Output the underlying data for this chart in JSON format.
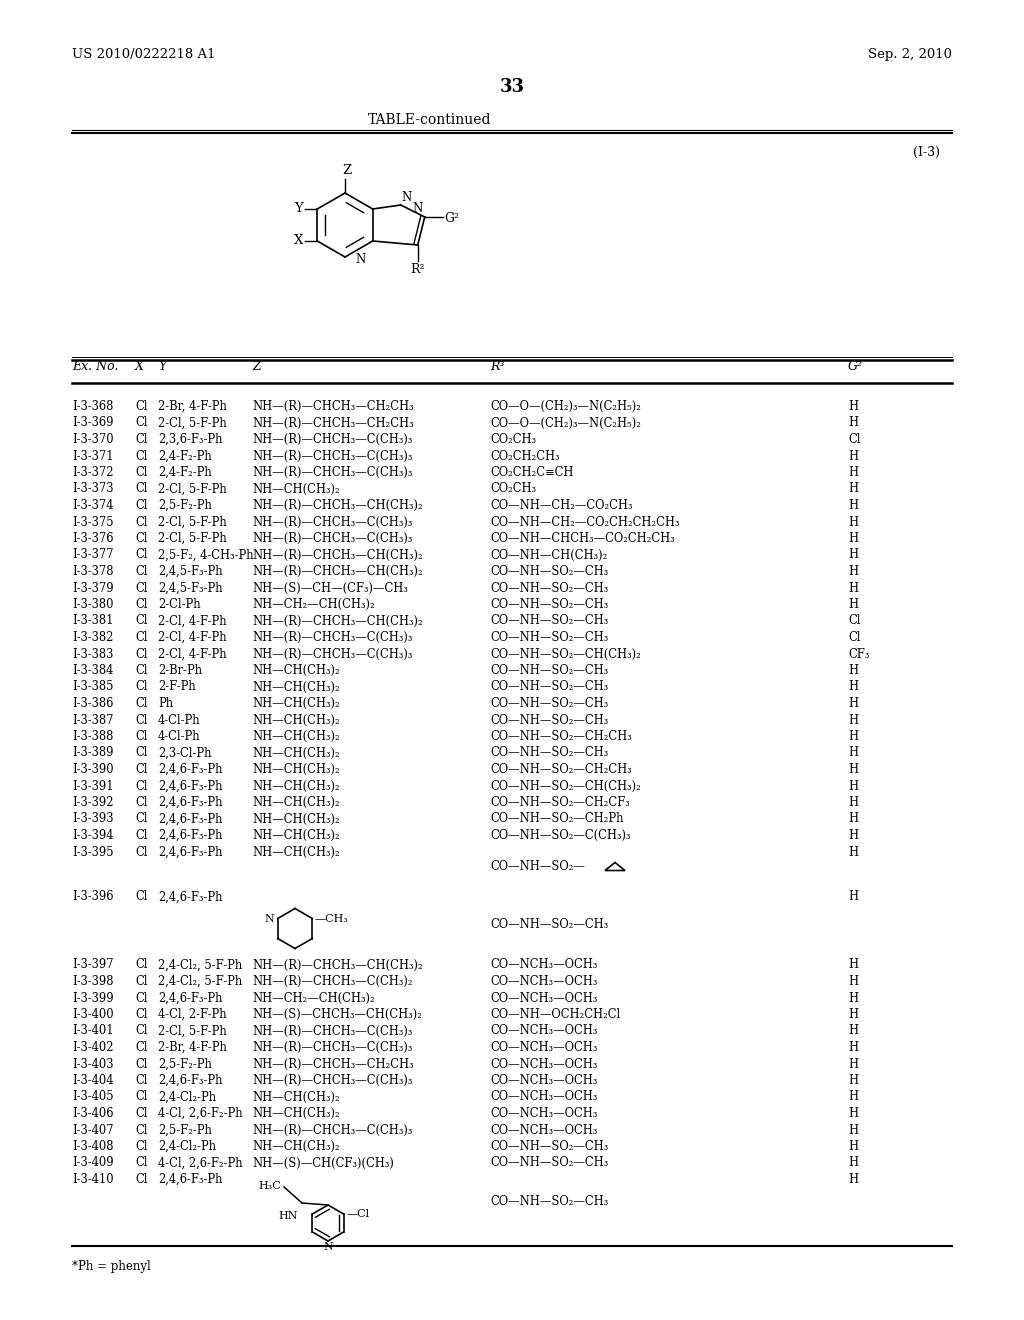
{
  "header_left": "US 2010/0222218 A1",
  "header_right": "Sep. 2, 2010",
  "page_number": "33",
  "table_title": "TABLE-continued",
  "compound_label": "(I-3)",
  "background_color": "#ffffff",
  "footnote": "*Ph = phenyl",
  "rows": [
    [
      "I-3-368",
      "Cl",
      "2-Br, 4-F-Ph",
      "NH—(R)—CHCH₃—CH₂CH₃",
      "CO—O—(CH₂)₃—N(C₂H₅)₂",
      "H"
    ],
    [
      "I-3-369",
      "Cl",
      "2-Cl, 5-F-Ph",
      "NH—(R)—CHCH₃—CH₂CH₃",
      "CO—O—(CH₂)₃—N(C₂H₅)₂",
      "H"
    ],
    [
      "I-3-370",
      "Cl",
      "2,3,6-F₃-Ph",
      "NH—(R)—CHCH₃—C(CH₃)₃",
      "CO₂CH₃",
      "Cl"
    ],
    [
      "I-3-371",
      "Cl",
      "2,4-F₂-Ph",
      "NH—(R)—CHCH₃—C(CH₃)₃",
      "CO₂CH₂CH₃",
      "H"
    ],
    [
      "I-3-372",
      "Cl",
      "2,4-F₂-Ph",
      "NH—(R)—CHCH₃—C(CH₃)₃",
      "CO₂CH₂C≡CH",
      "H"
    ],
    [
      "I-3-373",
      "Cl",
      "2-Cl, 5-F-Ph",
      "NH—CH(CH₃)₂",
      "CO₂CH₃",
      "H"
    ],
    [
      "I-3-374",
      "Cl",
      "2,5-F₂-Ph",
      "NH—(R)—CHCH₃—CH(CH₃)₂",
      "CO—NH—CH₂—CO₂CH₃",
      "H"
    ],
    [
      "I-3-375",
      "Cl",
      "2-Cl, 5-F-Ph",
      "NH—(R)—CHCH₃—C(CH₃)₃",
      "CO—NH—CH₂—CO₂CH₂CH₂CH₃",
      "H"
    ],
    [
      "I-3-376",
      "Cl",
      "2-Cl, 5-F-Ph",
      "NH—(R)—CHCH₃—C(CH₃)₃",
      "CO—NH—CHCH₃—CO₂CH₂CH₃",
      "H"
    ],
    [
      "I-3-377",
      "Cl",
      "2,5-F₂, 4-CH₃-Ph",
      "NH—(R)—CHCH₃—CH(CH₃)₂",
      "CO—NH—CH(CH₃)₂",
      "H"
    ],
    [
      "I-3-378",
      "Cl",
      "2,4,5-F₃-Ph",
      "NH—(R)—CHCH₃—CH(CH₃)₂",
      "CO—NH—SO₂—CH₃",
      "H"
    ],
    [
      "I-3-379",
      "Cl",
      "2,4,5-F₃-Ph",
      "NH—(S)—CH—(CF₃)—CH₃",
      "CO—NH—SO₂—CH₃",
      "H"
    ],
    [
      "I-3-380",
      "Cl",
      "2-Cl-Ph",
      "NH—CH₂—CH(CH₃)₂",
      "CO—NH—SO₂—CH₃",
      "H"
    ],
    [
      "I-3-381",
      "Cl",
      "2-Cl, 4-F-Ph",
      "NH—(R)—CHCH₃—CH(CH₃)₂",
      "CO—NH—SO₂—CH₃",
      "Cl"
    ],
    [
      "I-3-382",
      "Cl",
      "2-Cl, 4-F-Ph",
      "NH—(R)—CHCH₃—C(CH₃)₃",
      "CO—NH—SO₂—CH₃",
      "Cl"
    ],
    [
      "I-3-383",
      "Cl",
      "2-Cl, 4-F-Ph",
      "NH—(R)—CHCH₃—C(CH₃)₃",
      "CO—NH—SO₂—CH(CH₃)₂",
      "CF₃"
    ],
    [
      "I-3-384",
      "Cl",
      "2-Br-Ph",
      "NH—CH(CH₃)₂",
      "CO—NH—SO₂—CH₃",
      "H"
    ],
    [
      "I-3-385",
      "Cl",
      "2-F-Ph",
      "NH—CH(CH₃)₂",
      "CO—NH—SO₂—CH₃",
      "H"
    ],
    [
      "I-3-386",
      "Cl",
      "Ph",
      "NH—CH(CH₃)₂",
      "CO—NH—SO₂—CH₃",
      "H"
    ],
    [
      "I-3-387",
      "Cl",
      "4-Cl-Ph",
      "NH—CH(CH₃)₂",
      "CO—NH—SO₂—CH₃",
      "H"
    ],
    [
      "I-3-388",
      "Cl",
      "4-Cl-Ph",
      "NH—CH(CH₃)₂",
      "CO—NH—SO₂—CH₂CH₃",
      "H"
    ],
    [
      "I-3-389",
      "Cl",
      "2,3-Cl-Ph",
      "NH—CH(CH₃)₂",
      "CO—NH—SO₂—CH₃",
      "H"
    ],
    [
      "I-3-390",
      "Cl",
      "2,4,6-F₃-Ph",
      "NH—CH(CH₃)₂",
      "CO—NH—SO₂—CH₂CH₃",
      "H"
    ],
    [
      "I-3-391",
      "Cl",
      "2,4,6-F₃-Ph",
      "NH—CH(CH₃)₂",
      "CO—NH—SO₂—CH(CH₃)₂",
      "H"
    ],
    [
      "I-3-392",
      "Cl",
      "2,4,6-F₃-Ph",
      "NH—CH(CH₃)₂",
      "CO—NH—SO₂—CH₂CF₃",
      "H"
    ],
    [
      "I-3-393",
      "Cl",
      "2,4,6-F₃-Ph",
      "NH—CH(CH₃)₂",
      "CO—NH—SO₂—CH₂Ph",
      "H"
    ],
    [
      "I-3-394",
      "Cl",
      "2,4,6-F₃-Ph",
      "NH—CH(CH₃)₂",
      "CO—NH—SO₂—C(CH₃)₃",
      "H"
    ],
    [
      "I-3-395",
      "Cl",
      "2,4,6-F₃-Ph",
      "NH—CH(CH₃)₂",
      "CYCLOPROPYL",
      "H"
    ],
    [
      "I-3-396",
      "Cl",
      "2,4,6-F₃-Ph",
      "PIPERIDINE",
      "CO—NH—SO₂—CH₃",
      "H"
    ],
    [
      "I-3-397",
      "Cl",
      "2,4-Cl₂, 5-F-Ph",
      "NH—(R)—CHCH₃—CH(CH₃)₂",
      "CO—NCH₃—OCH₃",
      "H"
    ],
    [
      "I-3-398",
      "Cl",
      "2,4-Cl₂, 5-F-Ph",
      "NH—(R)—CHCH₃—C(CH₃)₂",
      "CO—NCH₃—OCH₃",
      "H"
    ],
    [
      "I-3-399",
      "Cl",
      "2,4,6-F₃-Ph",
      "NH—CH₂—CH(CH₃)₂",
      "CO—NCH₃—OCH₃",
      "H"
    ],
    [
      "I-3-400",
      "Cl",
      "4-Cl, 2-F-Ph",
      "NH—(S)—CHCH₃—CH(CH₃)₂",
      "CO—NH—OCH₂CH₂Cl",
      "H"
    ],
    [
      "I-3-401",
      "Cl",
      "2-Cl, 5-F-Ph",
      "NH—(R)—CHCH₃—C(CH₃)₃",
      "CO—NCH₃—OCH₃",
      "H"
    ],
    [
      "I-3-402",
      "Cl",
      "2-Br, 4-F-Ph",
      "NH—(R)—CHCH₃—C(CH₃)₃",
      "CO—NCH₃—OCH₃",
      "H"
    ],
    [
      "I-3-403",
      "Cl",
      "2,5-F₂-Ph",
      "NH—(R)—CHCH₃—CH₂CH₃",
      "CO—NCH₃—OCH₃",
      "H"
    ],
    [
      "I-3-404",
      "Cl",
      "2,4,6-F₃-Ph",
      "NH—(R)—CHCH₃—C(CH₃)₃",
      "CO—NCH₃—OCH₃",
      "H"
    ],
    [
      "I-3-405",
      "Cl",
      "2,4-Cl₂-Ph",
      "NH—CH(CH₃)₂",
      "CO—NCH₃—OCH₃",
      "H"
    ],
    [
      "I-3-406",
      "Cl",
      "4-Cl, 2,6-F₂-Ph",
      "NH—CH(CH₃)₂",
      "CO—NCH₃—OCH₃",
      "H"
    ],
    [
      "I-3-407",
      "Cl",
      "2,5-F₂-Ph",
      "NH—(R)—CHCH₃—C(CH₃)₃",
      "CO—NCH₃—OCH₃",
      "H"
    ],
    [
      "I-3-408",
      "Cl",
      "2,4-Cl₂-Ph",
      "NH—CH(CH₃)₂",
      "CO—NH—SO₂—CH₃",
      "H"
    ],
    [
      "I-3-409",
      "Cl",
      "4-Cl, 2,6-F₂-Ph",
      "NH—(S)—CH(CF₃)(CH₃)",
      "CO—NH—SO₂—CH₃",
      "H"
    ],
    [
      "I-3-410",
      "Cl",
      "2,4,6-F₃-Ph",
      "AMINOPYRIDINE",
      "CO—NH—SO₂—CH₃",
      "H"
    ]
  ]
}
